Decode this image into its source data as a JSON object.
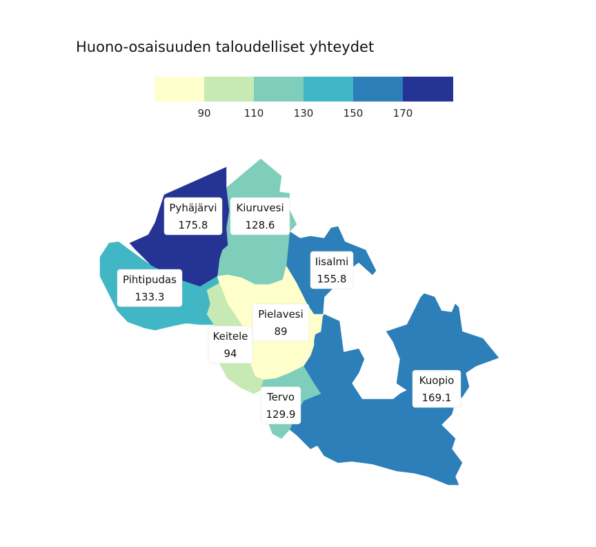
{
  "title": "Huono-osaisuuden taloudelliset yhteydet",
  "legend": {
    "colors": [
      "#ffffcc",
      "#c7e9b4",
      "#7fcdbb",
      "#41b6c4",
      "#2c7fb8",
      "#253494"
    ],
    "ticks": [
      "90",
      "110",
      "130",
      "150",
      "170"
    ]
  },
  "municipalities": [
    {
      "name": "Pyhäjärvi",
      "value": "175.8",
      "color": "#253494"
    },
    {
      "name": "Kiuruvesi",
      "value": "128.6",
      "color": "#7fcdbb"
    },
    {
      "name": "Iisalmi",
      "value": "155.8",
      "color": "#2c7fb8"
    },
    {
      "name": "Pihtipudas",
      "value": "133.3",
      "color": "#41b6c4"
    },
    {
      "name": "Pielavesi",
      "value": "89",
      "color": "#ffffcc"
    },
    {
      "name": "Keitele",
      "value": "94",
      "color": "#c7e9b4"
    },
    {
      "name": "Tervo",
      "value": "129.9",
      "color": "#7fcdbb"
    },
    {
      "name": "Kuopio",
      "value": "169.1",
      "color": "#2c7fb8"
    }
  ]
}
